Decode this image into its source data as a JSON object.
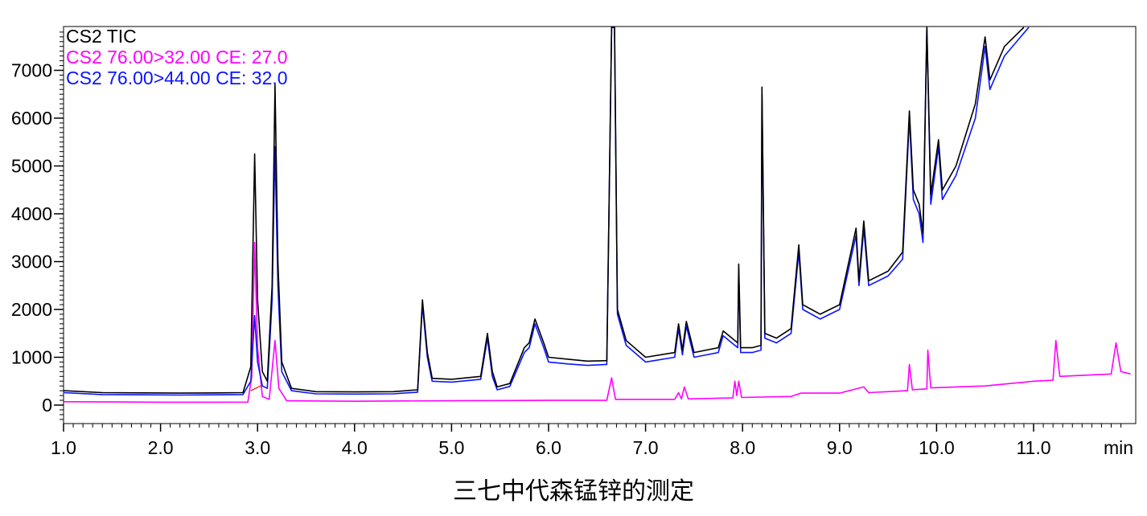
{
  "chart_data": {
    "type": "line",
    "xlabel": "min",
    "x_range": [
      1.0,
      12.0
    ],
    "ylim": [
      -600,
      7900
    ],
    "x_ticks": [
      "1.0",
      "2.0",
      "3.0",
      "4.0",
      "5.0",
      "6.0",
      "7.0",
      "8.0",
      "9.0",
      "10.0",
      "11.0"
    ],
    "y_ticks": [
      "0",
      "1000",
      "2000",
      "3000",
      "4000",
      "5000",
      "6000",
      "7000"
    ],
    "series": [
      {
        "name": "CS2 TIC",
        "color": "#000000",
        "points": [
          [
            1.0,
            300
          ],
          [
            1.4,
            260
          ],
          [
            1.8,
            255
          ],
          [
            2.2,
            250
          ],
          [
            2.6,
            255
          ],
          [
            2.85,
            260
          ],
          [
            2.93,
            800
          ],
          [
            2.97,
            5250
          ],
          [
            3.0,
            2200
          ],
          [
            3.05,
            700
          ],
          [
            3.1,
            500
          ],
          [
            3.15,
            2500
          ],
          [
            3.18,
            6700
          ],
          [
            3.21,
            3000
          ],
          [
            3.25,
            900
          ],
          [
            3.35,
            350
          ],
          [
            3.6,
            280
          ],
          [
            4.0,
            275
          ],
          [
            4.4,
            280
          ],
          [
            4.65,
            320
          ],
          [
            4.7,
            2200
          ],
          [
            4.75,
            1100
          ],
          [
            4.8,
            560
          ],
          [
            5.0,
            540
          ],
          [
            5.3,
            600
          ],
          [
            5.37,
            1500
          ],
          [
            5.42,
            700
          ],
          [
            5.47,
            380
          ],
          [
            5.6,
            450
          ],
          [
            5.75,
            1200
          ],
          [
            5.8,
            1300
          ],
          [
            5.86,
            1800
          ],
          [
            5.95,
            1300
          ],
          [
            6.0,
            1000
          ],
          [
            6.2,
            960
          ],
          [
            6.4,
            920
          ],
          [
            6.6,
            930
          ],
          [
            6.65,
            7900
          ],
          [
            6.68,
            7900
          ],
          [
            6.71,
            2000
          ],
          [
            6.8,
            1350
          ],
          [
            7.0,
            1000
          ],
          [
            7.3,
            1100
          ],
          [
            7.34,
            1700
          ],
          [
            7.38,
            1150
          ],
          [
            7.42,
            1750
          ],
          [
            7.5,
            1100
          ],
          [
            7.75,
            1200
          ],
          [
            7.8,
            1550
          ],
          [
            7.95,
            1300
          ],
          [
            7.96,
            2950
          ],
          [
            7.98,
            1200
          ],
          [
            8.1,
            1200
          ],
          [
            8.19,
            1250
          ],
          [
            8.2,
            6650
          ],
          [
            8.23,
            1500
          ],
          [
            8.35,
            1400
          ],
          [
            8.5,
            1600
          ],
          [
            8.58,
            3350
          ],
          [
            8.62,
            2100
          ],
          [
            8.8,
            1900
          ],
          [
            9.0,
            2100
          ],
          [
            9.17,
            3700
          ],
          [
            9.2,
            2600
          ],
          [
            9.25,
            3850
          ],
          [
            9.3,
            2600
          ],
          [
            9.5,
            2800
          ],
          [
            9.65,
            3200
          ],
          [
            9.72,
            6150
          ],
          [
            9.76,
            4500
          ],
          [
            9.82,
            4200
          ],
          [
            9.86,
            3600
          ],
          [
            9.9,
            7900
          ],
          [
            9.94,
            4400
          ],
          [
            10.02,
            5550
          ],
          [
            10.06,
            4500
          ],
          [
            10.2,
            5000
          ],
          [
            10.4,
            6300
          ],
          [
            10.5,
            7700
          ],
          [
            10.55,
            6800
          ],
          [
            10.7,
            7500
          ],
          [
            10.9,
            7900
          ]
        ]
      },
      {
        "name": "CS2 76.00>32.00 CE: 27.0",
        "color": "#ff00ff",
        "points": [
          [
            1.0,
            70
          ],
          [
            1.5,
            65
          ],
          [
            2.0,
            60
          ],
          [
            2.5,
            60
          ],
          [
            2.9,
            62
          ],
          [
            2.94,
            600
          ],
          [
            2.97,
            3400
          ],
          [
            3.0,
            1200
          ],
          [
            3.05,
            180
          ],
          [
            3.12,
            120
          ],
          [
            3.18,
            1350
          ],
          [
            3.22,
            350
          ],
          [
            3.3,
            90
          ],
          [
            4.0,
            80
          ],
          [
            5.0,
            90
          ],
          [
            6.0,
            100
          ],
          [
            6.6,
            100
          ],
          [
            6.65,
            570
          ],
          [
            6.69,
            120
          ],
          [
            7.3,
            120
          ],
          [
            7.34,
            260
          ],
          [
            7.37,
            130
          ],
          [
            7.4,
            380
          ],
          [
            7.44,
            130
          ],
          [
            7.9,
            150
          ],
          [
            7.92,
            500
          ],
          [
            7.94,
            200
          ],
          [
            7.96,
            500
          ],
          [
            7.99,
            160
          ],
          [
            8.5,
            180
          ],
          [
            8.6,
            250
          ],
          [
            9.0,
            250
          ],
          [
            9.25,
            380
          ],
          [
            9.3,
            260
          ],
          [
            9.7,
            300
          ],
          [
            9.72,
            850
          ],
          [
            9.75,
            320
          ],
          [
            9.9,
            340
          ],
          [
            9.91,
            1150
          ],
          [
            9.94,
            360
          ],
          [
            10.5,
            400
          ],
          [
            11.0,
            500
          ],
          [
            11.2,
            520
          ],
          [
            11.23,
            1350
          ],
          [
            11.27,
            600
          ],
          [
            11.8,
            650
          ],
          [
            11.85,
            1300
          ],
          [
            11.9,
            700
          ],
          [
            12.0,
            650
          ]
        ]
      },
      {
        "name": "CS2 76.00>44.00 CE: 32.0",
        "color": "#0a14ff",
        "points": [
          [
            1.0,
            260
          ],
          [
            1.4,
            220
          ],
          [
            1.8,
            215
          ],
          [
            2.2,
            210
          ],
          [
            2.6,
            215
          ],
          [
            2.85,
            220
          ],
          [
            2.93,
            500
          ],
          [
            2.97,
            1870
          ],
          [
            3.0,
            900
          ],
          [
            3.05,
            400
          ],
          [
            3.1,
            350
          ],
          [
            3.15,
            2200
          ],
          [
            3.18,
            5400
          ],
          [
            3.21,
            2500
          ],
          [
            3.25,
            700
          ],
          [
            3.35,
            300
          ],
          [
            3.6,
            235
          ],
          [
            4.0,
            230
          ],
          [
            4.4,
            235
          ],
          [
            4.65,
            270
          ],
          [
            4.7,
            2100
          ],
          [
            4.75,
            1000
          ],
          [
            4.8,
            500
          ],
          [
            5.0,
            480
          ],
          [
            5.3,
            540
          ],
          [
            5.37,
            1400
          ],
          [
            5.42,
            600
          ],
          [
            5.47,
            320
          ],
          [
            5.6,
            390
          ],
          [
            5.75,
            1100
          ],
          [
            5.8,
            1200
          ],
          [
            5.86,
            1700
          ],
          [
            5.95,
            1200
          ],
          [
            6.0,
            900
          ],
          [
            6.2,
            860
          ],
          [
            6.4,
            830
          ],
          [
            6.6,
            850
          ],
          [
            6.65,
            7900
          ],
          [
            6.68,
            7900
          ],
          [
            6.71,
            1900
          ],
          [
            6.8,
            1250
          ],
          [
            7.0,
            900
          ],
          [
            7.3,
            1000
          ],
          [
            7.34,
            1600
          ],
          [
            7.38,
            1050
          ],
          [
            7.42,
            1650
          ],
          [
            7.5,
            1000
          ],
          [
            7.75,
            1100
          ],
          [
            7.8,
            1450
          ],
          [
            7.95,
            1200
          ],
          [
            7.96,
            2800
          ],
          [
            7.98,
            1100
          ],
          [
            8.1,
            1100
          ],
          [
            8.19,
            1150
          ],
          [
            8.2,
            6500
          ],
          [
            8.23,
            1400
          ],
          [
            8.35,
            1300
          ],
          [
            8.5,
            1500
          ],
          [
            8.58,
            3200
          ],
          [
            8.62,
            2000
          ],
          [
            8.8,
            1800
          ],
          [
            9.0,
            2000
          ],
          [
            9.17,
            3550
          ],
          [
            9.2,
            2500
          ],
          [
            9.25,
            3700
          ],
          [
            9.3,
            2500
          ],
          [
            9.5,
            2700
          ],
          [
            9.65,
            3050
          ],
          [
            9.72,
            6000
          ],
          [
            9.76,
            4300
          ],
          [
            9.82,
            4000
          ],
          [
            9.86,
            3400
          ],
          [
            9.9,
            7900
          ],
          [
            9.94,
            4200
          ],
          [
            10.02,
            5400
          ],
          [
            10.06,
            4300
          ],
          [
            10.2,
            4800
          ],
          [
            10.4,
            6000
          ],
          [
            10.5,
            7500
          ],
          [
            10.55,
            6600
          ],
          [
            10.7,
            7300
          ],
          [
            10.95,
            7900
          ]
        ]
      }
    ],
    "grid": false
  },
  "caption": "三七中代森锰锌的测定"
}
